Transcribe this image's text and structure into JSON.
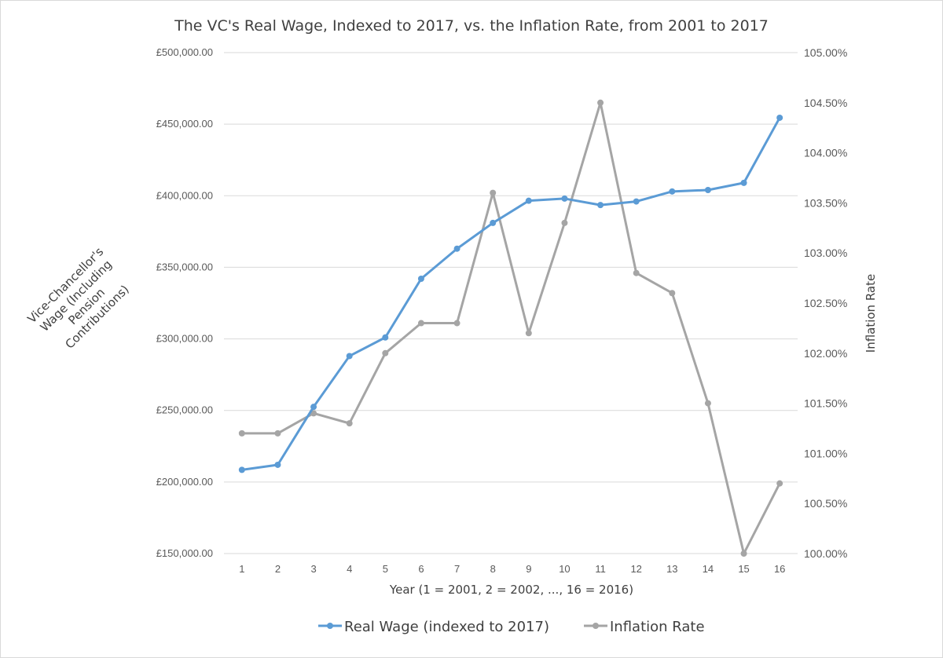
{
  "chart_data": {
    "type": "line",
    "title": "The VC's Real Wage, Indexed to 2017, vs. the Inflation Rate, from 2001 to 2017",
    "xlabel": "Year (1 = 2001, 2 = 2002, ..., 16 = 2016)",
    "ylabel_left_lines": [
      "Vice-Chancellor's",
      "Wage (Including",
      "Pension",
      "Contributions)"
    ],
    "ylabel_right": "Inflation Rate",
    "categories": [
      "1",
      "2",
      "3",
      "4",
      "5",
      "6",
      "7",
      "8",
      "9",
      "10",
      "11",
      "12",
      "13",
      "14",
      "15",
      "16"
    ],
    "y_left": {
      "lim": [
        150000,
        500000
      ],
      "ticks": [
        150000,
        200000,
        250000,
        300000,
        350000,
        400000,
        450000,
        500000
      ],
      "tick_labels": [
        "£150,000.00",
        "£200,000.00",
        "£250,000.00",
        "£300,000.00",
        "£350,000.00",
        "£400,000.00",
        "£450,000.00",
        "£500,000.00"
      ]
    },
    "y_right": {
      "lim": [
        1.0,
        1.05
      ],
      "ticks": [
        1.0,
        1.005,
        1.01,
        1.015,
        1.02,
        1.025,
        1.03,
        1.035,
        1.04,
        1.045,
        1.05
      ],
      "tick_labels": [
        "100.00%",
        "100.50%",
        "101.00%",
        "101.50%",
        "102.00%",
        "102.50%",
        "103.00%",
        "103.50%",
        "104.00%",
        "104.50%",
        "105.00%"
      ]
    },
    "grid": true,
    "legend_position": "bottom",
    "series": [
      {
        "name": "Real Wage (indexed to 2017)",
        "axis": "left",
        "color": "#5b9bd5",
        "values": [
          208500,
          212000,
          252500,
          288000,
          301000,
          342000,
          363000,
          381000,
          396500,
          398000,
          393500,
          396000,
          403000,
          404000,
          409000,
          454500
        ]
      },
      {
        "name": "Inflation Rate",
        "axis": "right",
        "color": "#a5a5a5",
        "values": [
          1.012,
          1.012,
          1.014,
          1.013,
          1.02,
          1.023,
          1.023,
          1.036,
          1.022,
          1.033,
          1.045,
          1.028,
          1.026,
          1.015,
          1.0,
          1.007
        ]
      }
    ]
  }
}
